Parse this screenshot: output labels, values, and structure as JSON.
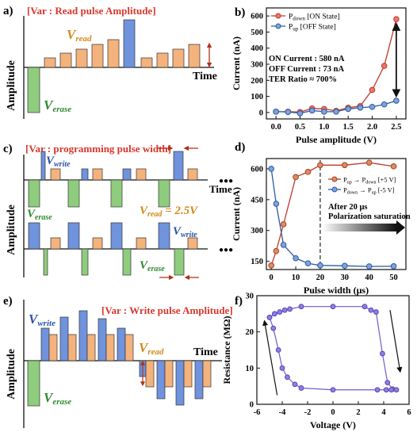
{
  "panels": {
    "a": {
      "letter": "a)",
      "title": "[Var : Read pulse Amplitude]",
      "read_label": "V",
      "read_sub": "read",
      "erase_label": "V",
      "erase_sub": "erase",
      "ylabel": "Amplitude",
      "xlabel": "Time"
    },
    "c": {
      "letter": "c)",
      "title": "[Var : programming pulse width]",
      "write_label": "V",
      "write_sub": "write",
      "erase_label": "V",
      "erase_sub": "erase",
      "read_note": "V",
      "read_note_sub": "read",
      "read_note_val": " = 2.5V",
      "ylabel": "Amplitude",
      "xlabel": "Time",
      "dots": "●●●"
    },
    "e": {
      "letter": "e)",
      "title": "[Var : Write pulse Amplitude]",
      "write_label": "V",
      "write_sub": "write",
      "read_label": "V",
      "read_sub": "read",
      "erase_label": "V",
      "erase_sub": "erase",
      "ylabel": "Amplitude",
      "xlabel": "Time"
    }
  },
  "colors": {
    "blue": "#6f93dd",
    "orange": "#f4b27c",
    "green": "#8fcc7e",
    "red_text": "#d9362b",
    "orange_text": "#d48a1a",
    "blue_text": "#2a55a8",
    "green_text": "#2f8a2f",
    "line_red": "#c0392b",
    "line_blue": "#2c5aa0",
    "marker_purple": "#8f7fe0"
  },
  "chart_data": [
    {
      "panel": "b)",
      "type": "line",
      "xlabel": "Pulse amplitude (V)",
      "ylabel": "Current (nA)",
      "xlim": [
        -0.2,
        2.7
      ],
      "ylim": [
        -40,
        650
      ],
      "xticks": [
        "0.0",
        "0.5",
        "1.0",
        "1.5",
        "2.0",
        "2.5"
      ],
      "yticks": [
        "0",
        "100",
        "200",
        "300",
        "400",
        "500",
        "600"
      ],
      "x": [
        0.0,
        0.25,
        0.5,
        0.75,
        1.0,
        1.25,
        1.5,
        1.75,
        2.0,
        2.25,
        2.5
      ],
      "series": [
        {
          "name": "P",
          "sub": "down",
          "suffix": " [ON State]",
          "values": [
            5,
            5,
            3,
            25,
            22,
            10,
            30,
            40,
            140,
            290,
            580
          ]
        },
        {
          "name": "P",
          "sub": "up",
          "suffix": " [OFF State]",
          "values": [
            5,
            3,
            -5,
            12,
            5,
            5,
            22,
            30,
            35,
            50,
            73
          ]
        }
      ],
      "annotations": [
        "ON Current : 580 nA",
        "OFF Current : 73 nA",
        "TER Ratio ≈ 700%"
      ]
    },
    {
      "panel": "d)",
      "type": "line",
      "xlabel": "Pulse width (μs)",
      "ylabel": "Current (nA)",
      "xlim": [
        -2,
        55
      ],
      "ylim": [
        110,
        650
      ],
      "xticks": [
        "0",
        "10",
        "20",
        "30",
        "40",
        "50"
      ],
      "yticks": [
        "150",
        "300",
        "450",
        "600"
      ],
      "x": [
        0,
        2,
        5,
        10,
        15,
        20,
        30,
        40,
        50
      ],
      "series": [
        {
          "name": "P",
          "sub": "up",
          "arrow": " → ",
          "name2": "P",
          "sub2": "down",
          "suffix": " [+5 V]",
          "values": [
            130,
            200,
            330,
            560,
            585,
            618,
            618,
            630,
            612
          ]
        },
        {
          "name": "P",
          "sub": "down",
          "arrow": " → ",
          "name2": "P",
          "sub2": "up",
          "suffix": " [-5 V]",
          "values": [
            600,
            430,
            230,
            165,
            140,
            130,
            128,
            125,
            126
          ]
        }
      ],
      "annotations": [
        "After 20 μs",
        "Polarization saturation"
      ]
    },
    {
      "panel": "f)",
      "type": "line",
      "xlabel": "Voltage (V)",
      "ylabel": "Resistance (MΩ)",
      "xlim": [
        -6,
        6
      ],
      "ylim": [
        0,
        30
      ],
      "xticks": [
        "-6",
        "-4",
        "-2",
        "0",
        "2",
        "4",
        "6"
      ],
      "yticks": [
        "0",
        "10",
        "20",
        "30"
      ],
      "x": [
        -5,
        -4.6,
        -4.2,
        -3.8,
        -3.4,
        -2.5,
        0,
        2.5,
        3.0,
        3.4,
        3.9,
        4.3,
        4.7,
        5.0,
        4.6,
        4.2,
        3.5,
        0,
        -2.5,
        -3.0,
        -3.6,
        -4.0,
        -4.3,
        -4.7,
        -5.0
      ],
      "values": [
        24,
        25,
        25.5,
        26,
        26.3,
        27,
        27,
        27,
        26,
        25.5,
        14,
        6,
        4.2,
        4,
        4,
        4,
        4,
        4,
        4.5,
        5.5,
        7.5,
        10,
        15,
        21,
        24
      ]
    }
  ]
}
